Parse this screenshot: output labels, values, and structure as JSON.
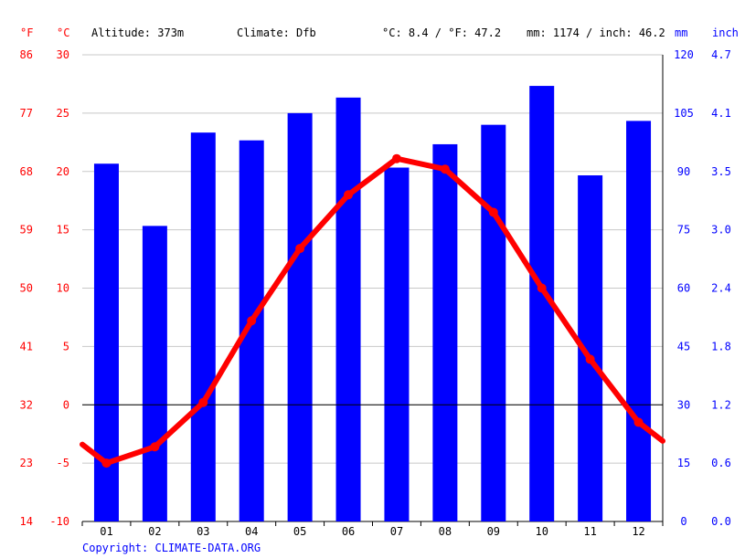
{
  "header": {
    "unit_f": "°F",
    "unit_c": "°C",
    "altitude": "Altitude: 373m",
    "climate": "Climate: Dfb",
    "temp_avg": "°C: 8.4 / °F: 47.2",
    "precip_total": "mm: 1174 / inch: 46.2",
    "unit_mm": "mm",
    "unit_inch": "inch"
  },
  "footer": {
    "copyright": "Copyright: CLIMATE-DATA.ORG"
  },
  "axes": {
    "f_ticks": [
      "86",
      "77",
      "68",
      "59",
      "50",
      "41",
      "32",
      "23",
      "14"
    ],
    "c_ticks": [
      "30",
      "25",
      "20",
      "15",
      "10",
      "5",
      "0",
      "-5",
      "-10"
    ],
    "mm_ticks": [
      "120",
      "105",
      "90",
      "75",
      "60",
      "45",
      "30",
      "15",
      "0"
    ],
    "inch_ticks": [
      "4.7",
      "4.1",
      "3.5",
      "3.0",
      "2.4",
      "1.8",
      "1.2",
      "0.6",
      "0.0"
    ]
  },
  "chart_data": {
    "type": "bar+line",
    "categories": [
      "01",
      "02",
      "03",
      "04",
      "05",
      "06",
      "07",
      "08",
      "09",
      "10",
      "11",
      "12"
    ],
    "series": [
      {
        "axis": "mm",
        "type": "bar",
        "values": [
          92,
          76,
          100,
          98,
          105,
          109,
          91,
          97,
          102,
          112,
          89,
          103
        ]
      },
      {
        "axis": "°C",
        "type": "line",
        "values": [
          -5.0,
          -3.6,
          0.2,
          7.2,
          13.4,
          18.0,
          21.1,
          20.2,
          16.5,
          10.0,
          3.9,
          -1.5
        ],
        "endpoints": [
          -3.4,
          -3.1
        ]
      }
    ],
    "temp_axis_range_c": [
      -10,
      30
    ],
    "precip_axis_range_mm": [
      0,
      120
    ],
    "grid": true,
    "colors": {
      "bars": "#0000ff",
      "line": "#ff0000",
      "grid": "#c8c8c8",
      "zero_line": "#000000"
    }
  }
}
